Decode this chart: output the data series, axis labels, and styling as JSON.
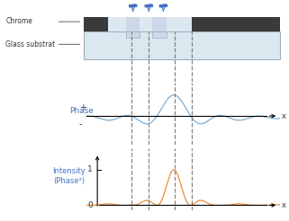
{
  "fig_width": 3.21,
  "fig_height": 2.46,
  "dpi": 100,
  "bg_color": "#ffffff",
  "blue_color": "#7bafd4",
  "orange_color": "#e8903a",
  "chrome_color": "#3a3a3a",
  "glass_color": "#dce8f0",
  "glass_border": "#9ab0c0",
  "dashed_color": "#777777",
  "arrow_blue": "#4472c4",
  "label_color": "#333333",
  "phase_label": "Phase",
  "intensity_label": "Intensity\n(Phase²)",
  "chrome_label": "Chrome",
  "glass_label": "Glass substrat",
  "plus_label": "+",
  "minus_label": "-",
  "one_label": "1",
  "zero_label": "0",
  "x_label": "x"
}
